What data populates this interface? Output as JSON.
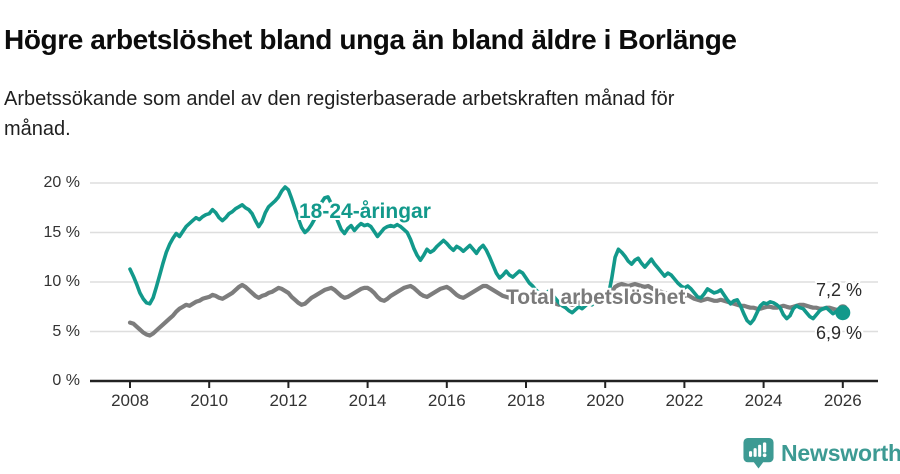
{
  "title": "Högre arbetslöshet bland unga än bland äldre i Borlänge",
  "subtitle": {
    "line1": "Arbetssökande som andel av den registerbaserade arbetskraften månad för",
    "line2": "månad."
  },
  "annotations": {
    "youth_label": "18-24-åringar",
    "total_label": "Total arbetslöshet",
    "end_label_total": "7,2 %",
    "end_label_youth": "6,9 %"
  },
  "footer": {
    "brand": "Newsworthy"
  },
  "colors": {
    "youth": "#12998b",
    "total": "#7d7d7d",
    "grid": "#dedede",
    "axis": "#222222",
    "tick_text": "#333333",
    "brand": "#3d9a93"
  },
  "chart_data": {
    "type": "line",
    "title": "Högre arbetslöshet bland unga än bland äldre i Borlänge",
    "subtitle": "Arbetssökande som andel av den registerbaserade arbetskraften månad för månad.",
    "x_unit": "month",
    "x_start": "2008-01",
    "x_end": "2026-01",
    "xlabel": "",
    "ylabel": "",
    "ylim": [
      0,
      20
    ],
    "grid": "horizontal",
    "legend": "inline-annotations",
    "x_ticks": [
      "2008",
      "2010",
      "2012",
      "2014",
      "2016",
      "2018",
      "2020",
      "2022",
      "2024",
      "2026"
    ],
    "y_ticks": [
      {
        "value": 0,
        "label": "0 %"
      },
      {
        "value": 5,
        "label": "5 %"
      },
      {
        "value": 10,
        "label": "10 %"
      },
      {
        "value": 15,
        "label": "15 %"
      },
      {
        "value": 20,
        "label": "20 %"
      }
    ],
    "series": [
      {
        "name": "Total arbetslöshet",
        "color": "#7d7d7d",
        "end_value": 7.2,
        "end_label": "7,2 %",
        "values": [
          5.9,
          5.8,
          5.5,
          5.2,
          4.9,
          4.7,
          4.6,
          4.8,
          5.1,
          5.4,
          5.7,
          6.0,
          6.3,
          6.6,
          7.0,
          7.3,
          7.5,
          7.7,
          7.6,
          7.8,
          8.0,
          8.1,
          8.3,
          8.4,
          8.5,
          8.7,
          8.6,
          8.4,
          8.3,
          8.5,
          8.7,
          8.9,
          9.2,
          9.5,
          9.7,
          9.5,
          9.2,
          8.9,
          8.6,
          8.4,
          8.6,
          8.7,
          8.9,
          9.0,
          9.2,
          9.4,
          9.3,
          9.1,
          8.9,
          8.5,
          8.2,
          7.9,
          7.7,
          7.8,
          8.1,
          8.4,
          8.6,
          8.8,
          9.0,
          9.2,
          9.3,
          9.4,
          9.2,
          8.9,
          8.6,
          8.4,
          8.5,
          8.7,
          8.9,
          9.1,
          9.3,
          9.4,
          9.4,
          9.2,
          8.9,
          8.5,
          8.2,
          8.1,
          8.3,
          8.6,
          8.8,
          9.0,
          9.2,
          9.4,
          9.5,
          9.6,
          9.4,
          9.1,
          8.8,
          8.6,
          8.5,
          8.7,
          8.9,
          9.1,
          9.3,
          9.4,
          9.5,
          9.3,
          9.0,
          8.7,
          8.5,
          8.4,
          8.6,
          8.8,
          9.0,
          9.2,
          9.4,
          9.6,
          9.6,
          9.4,
          9.2,
          9.0,
          8.8,
          8.6,
          8.5,
          8.4,
          8.3,
          8.4,
          8.5,
          8.6,
          8.5,
          8.3,
          8.1,
          8.0,
          7.9,
          7.8,
          7.9,
          8.0,
          7.9,
          7.8,
          7.7,
          7.8,
          7.9,
          7.8,
          7.7,
          7.8,
          7.9,
          8.0,
          8.1,
          8.2,
          8.1,
          8.2,
          8.3,
          8.4,
          8.4,
          8.5,
          9.0,
          9.5,
          9.7,
          9.8,
          9.7,
          9.6,
          9.7,
          9.8,
          9.7,
          9.6,
          9.5,
          9.6,
          9.4,
          9.2,
          9.1,
          9.0,
          8.9,
          8.8,
          8.7,
          8.6,
          8.5,
          8.4,
          8.6,
          8.7,
          8.5,
          8.3,
          8.2,
          8.1,
          8.2,
          8.3,
          8.2,
          8.1,
          8.1,
          8.2,
          8.1,
          8.0,
          7.9,
          7.8,
          7.7,
          7.6,
          7.6,
          7.5,
          7.4,
          7.4,
          7.3,
          7.3,
          7.4,
          7.5,
          7.5,
          7.4,
          7.4,
          7.5,
          7.6,
          7.5,
          7.4,
          7.5,
          7.6,
          7.7,
          7.7,
          7.6,
          7.5,
          7.4,
          7.4,
          7.3,
          7.3,
          7.4,
          7.4,
          7.3,
          7.2,
          7.2,
          7.2
        ]
      },
      {
        "name": "18-24-åringar",
        "color": "#12998b",
        "end_value": 6.9,
        "end_label": "6,9 %",
        "values": [
          11.3,
          10.6,
          9.8,
          8.9,
          8.3,
          7.9,
          7.8,
          8.4,
          9.5,
          10.7,
          11.9,
          13.0,
          13.8,
          14.4,
          14.9,
          14.6,
          15.1,
          15.6,
          15.9,
          16.2,
          16.5,
          16.3,
          16.6,
          16.8,
          16.9,
          17.3,
          17.0,
          16.5,
          16.2,
          16.5,
          16.9,
          17.1,
          17.4,
          17.6,
          17.8,
          17.5,
          17.3,
          16.9,
          16.2,
          15.6,
          16.1,
          17.0,
          17.6,
          17.9,
          18.2,
          18.6,
          19.2,
          19.6,
          19.3,
          18.4,
          17.4,
          16.4,
          15.5,
          15.0,
          15.3,
          15.8,
          16.4,
          17.2,
          18.0,
          18.5,
          18.6,
          17.9,
          17.0,
          16.1,
          15.3,
          14.9,
          15.4,
          15.7,
          15.2,
          15.6,
          15.9,
          15.7,
          15.8,
          15.6,
          15.1,
          14.6,
          15.0,
          15.4,
          15.6,
          15.7,
          15.6,
          15.8,
          15.6,
          15.3,
          15.0,
          14.3,
          13.4,
          12.7,
          12.2,
          12.7,
          13.3,
          13.0,
          13.2,
          13.6,
          13.9,
          14.2,
          13.9,
          13.5,
          13.2,
          13.6,
          13.4,
          13.1,
          13.4,
          13.7,
          13.3,
          12.9,
          13.4,
          13.7,
          13.2,
          12.5,
          11.7,
          10.9,
          10.4,
          10.7,
          11.1,
          10.7,
          10.5,
          10.8,
          11.1,
          10.9,
          10.4,
          9.9,
          9.6,
          9.2,
          8.9,
          8.6,
          8.9,
          9.1,
          8.7,
          8.3,
          7.9,
          7.6,
          7.4,
          7.1,
          6.9,
          7.2,
          7.5,
          7.3,
          7.6,
          7.9,
          7.7,
          8.0,
          8.2,
          8.3,
          8.3,
          8.7,
          10.4,
          12.5,
          13.3,
          13.0,
          12.6,
          12.1,
          11.8,
          12.2,
          12.4,
          11.9,
          11.5,
          11.9,
          12.3,
          11.8,
          11.4,
          11.0,
          10.6,
          10.9,
          10.7,
          10.3,
          9.9,
          9.6,
          9.4,
          9.6,
          9.3,
          8.9,
          8.5,
          8.4,
          8.8,
          9.3,
          9.1,
          8.9,
          9.0,
          9.2,
          8.7,
          8.2,
          7.8,
          8.1,
          8.2,
          7.6,
          6.8,
          6.1,
          5.8,
          6.2,
          6.9,
          7.6,
          7.9,
          7.8,
          8.0,
          7.9,
          7.7,
          7.4,
          6.7,
          6.3,
          6.6,
          7.3,
          7.6,
          7.4,
          7.3,
          6.9,
          6.5,
          6.3,
          6.7,
          7.1,
          7.3,
          7.4,
          7.1,
          6.8,
          7.0,
          7.1,
          6.9
        ]
      }
    ]
  }
}
